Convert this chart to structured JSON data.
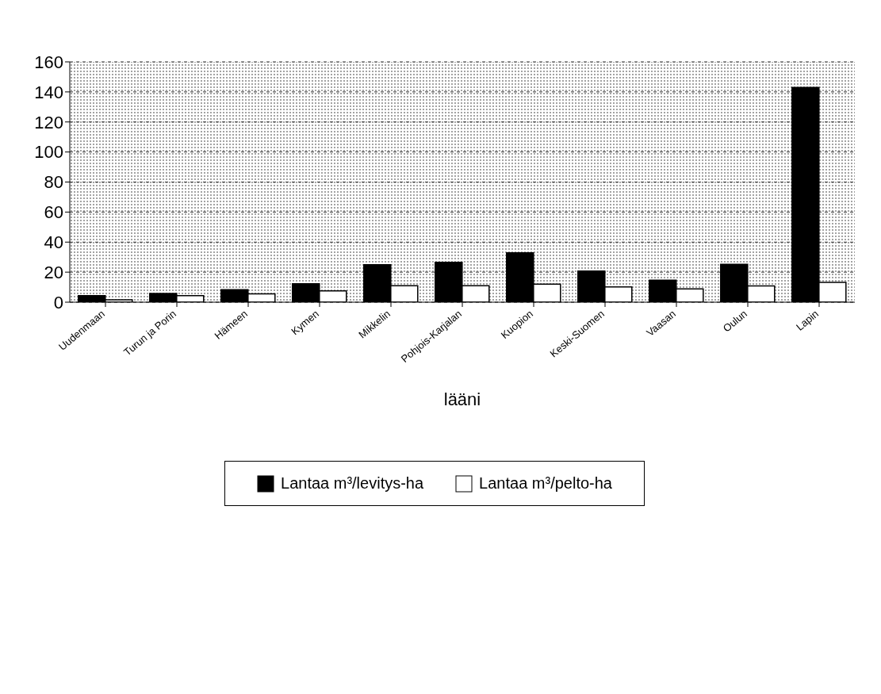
{
  "chart_data": {
    "type": "bar",
    "xlabel": "lääni",
    "categories": [
      "Uudenmaan",
      "Turun ja Porin",
      "Hämeen",
      "Kymen",
      "Mikkelin",
      "Pohjois-Karjalan",
      "Kuopion",
      "Keski-Suomen",
      "Vaasan",
      "Oulun",
      "Lapin"
    ],
    "series": [
      {
        "name": "Lantaa m³/levitys-ha",
        "color": "#000000",
        "values": [
          4.3,
          5.8,
          8.3,
          12.3,
          25,
          26.5,
          32.9,
          20.7,
          14.7,
          25.2,
          143
        ]
      },
      {
        "name": "Lantaa m³/pelto-ha",
        "color": "#ffffff",
        "values": [
          1.6,
          4.4,
          5.5,
          7.5,
          11,
          11,
          12,
          10.1,
          8.8,
          10.8,
          13.2
        ]
      }
    ],
    "ylim": [
      0,
      160
    ],
    "yticks": [
      0,
      20,
      40,
      60,
      80,
      100,
      120,
      140,
      160
    ],
    "grid": "y",
    "legend": "bottom"
  }
}
